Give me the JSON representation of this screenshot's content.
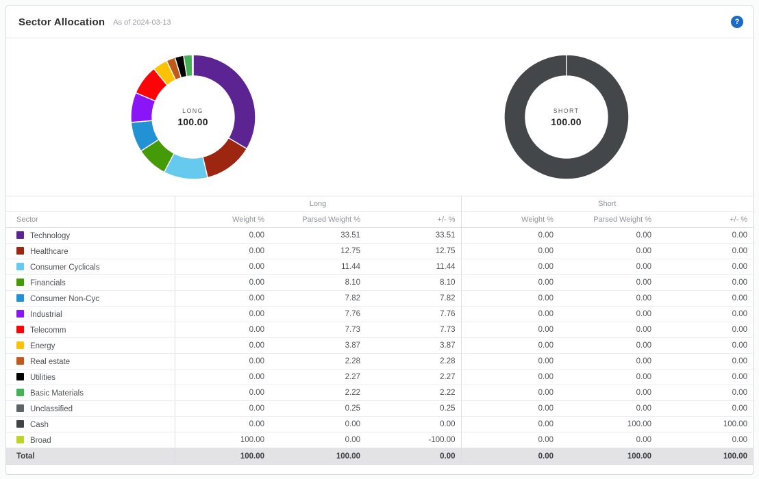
{
  "page": {
    "title": "Sector Allocation",
    "as_of": "As of 2024-03-13",
    "help_glyph": "?"
  },
  "colors": {
    "accent_help": "#1a6ac6",
    "total_row_bg": "#e3e3e5",
    "short_ring": "#434749"
  },
  "chart_data": [
    {
      "type": "donut",
      "label": "LONG",
      "center_value": "100.00",
      "total": 100.0,
      "segments": [
        {
          "name": "Technology",
          "value": 33.51,
          "color": "#5c2392"
        },
        {
          "name": "Healthcare",
          "value": 12.75,
          "color": "#9c2610"
        },
        {
          "name": "Consumer Cyclicals",
          "value": 11.44,
          "color": "#66c9ee"
        },
        {
          "name": "Financials",
          "value": 8.1,
          "color": "#459a08"
        },
        {
          "name": "Consumer Non-Cyc",
          "value": 7.82,
          "color": "#2292d4"
        },
        {
          "name": "Industrial",
          "value": 7.76,
          "color": "#8a16f8"
        },
        {
          "name": "Telecomm",
          "value": 7.73,
          "color": "#fb0307"
        },
        {
          "name": "Energy",
          "value": 3.87,
          "color": "#fdc204"
        },
        {
          "name": "Real estate",
          "value": 2.28,
          "color": "#c05a1c"
        },
        {
          "name": "Utilities",
          "value": 2.27,
          "color": "#000000"
        },
        {
          "name": "Basic Materials",
          "value": 2.22,
          "color": "#45b155"
        },
        {
          "name": "Unclassified",
          "value": 0.25,
          "color": "#5d6468"
        }
      ]
    },
    {
      "type": "donut",
      "label": "SHORT",
      "center_value": "100.00",
      "total": 100.0,
      "segments": [
        {
          "name": "Cash",
          "value": 100.0,
          "color": "#434749"
        }
      ]
    }
  ],
  "table": {
    "group_headers": {
      "long": "Long",
      "short": "Short"
    },
    "columns": {
      "sector": "Sector",
      "weight": "Weight %",
      "parsed": "Parsed Weight %",
      "plusminus": "+/- %"
    },
    "rows": [
      {
        "sector": "Technology",
        "color": "#5c2392",
        "long": [
          "0.00",
          "33.51",
          "33.51"
        ],
        "short": [
          "0.00",
          "0.00",
          "0.00"
        ]
      },
      {
        "sector": "Healthcare",
        "color": "#9c2610",
        "long": [
          "0.00",
          "12.75",
          "12.75"
        ],
        "short": [
          "0.00",
          "0.00",
          "0.00"
        ]
      },
      {
        "sector": "Consumer Cyclicals",
        "color": "#66c9ee",
        "long": [
          "0.00",
          "11.44",
          "11.44"
        ],
        "short": [
          "0.00",
          "0.00",
          "0.00"
        ]
      },
      {
        "sector": "Financials",
        "color": "#459a08",
        "long": [
          "0.00",
          "8.10",
          "8.10"
        ],
        "short": [
          "0.00",
          "0.00",
          "0.00"
        ]
      },
      {
        "sector": "Consumer Non-Cyc",
        "color": "#2292d4",
        "long": [
          "0.00",
          "7.82",
          "7.82"
        ],
        "short": [
          "0.00",
          "0.00",
          "0.00"
        ]
      },
      {
        "sector": "Industrial",
        "color": "#8a16f8",
        "long": [
          "0.00",
          "7.76",
          "7.76"
        ],
        "short": [
          "0.00",
          "0.00",
          "0.00"
        ]
      },
      {
        "sector": "Telecomm",
        "color": "#fb0307",
        "long": [
          "0.00",
          "7.73",
          "7.73"
        ],
        "short": [
          "0.00",
          "0.00",
          "0.00"
        ]
      },
      {
        "sector": "Energy",
        "color": "#fdc204",
        "long": [
          "0.00",
          "3.87",
          "3.87"
        ],
        "short": [
          "0.00",
          "0.00",
          "0.00"
        ]
      },
      {
        "sector": "Real estate",
        "color": "#c05a1c",
        "long": [
          "0.00",
          "2.28",
          "2.28"
        ],
        "short": [
          "0.00",
          "0.00",
          "0.00"
        ]
      },
      {
        "sector": "Utilities",
        "color": "#000000",
        "long": [
          "0.00",
          "2.27",
          "2.27"
        ],
        "short": [
          "0.00",
          "0.00",
          "0.00"
        ]
      },
      {
        "sector": "Basic Materials",
        "color": "#45b155",
        "long": [
          "0.00",
          "2.22",
          "2.22"
        ],
        "short": [
          "0.00",
          "0.00",
          "0.00"
        ]
      },
      {
        "sector": "Unclassified",
        "color": "#5d6468",
        "long": [
          "0.00",
          "0.25",
          "0.25"
        ],
        "short": [
          "0.00",
          "0.00",
          "0.00"
        ]
      },
      {
        "sector": "Cash",
        "color": "#3f4447",
        "long": [
          "0.00",
          "0.00",
          "0.00"
        ],
        "short": [
          "0.00",
          "100.00",
          "100.00"
        ]
      },
      {
        "sector": "Broad",
        "color": "#bed428",
        "long": [
          "100.00",
          "0.00",
          "-100.00"
        ],
        "short": [
          "0.00",
          "0.00",
          "0.00"
        ]
      }
    ],
    "total": {
      "label": "Total",
      "long": [
        "100.00",
        "100.00",
        "0.00"
      ],
      "short": [
        "0.00",
        "100.00",
        "100.00"
      ]
    }
  }
}
